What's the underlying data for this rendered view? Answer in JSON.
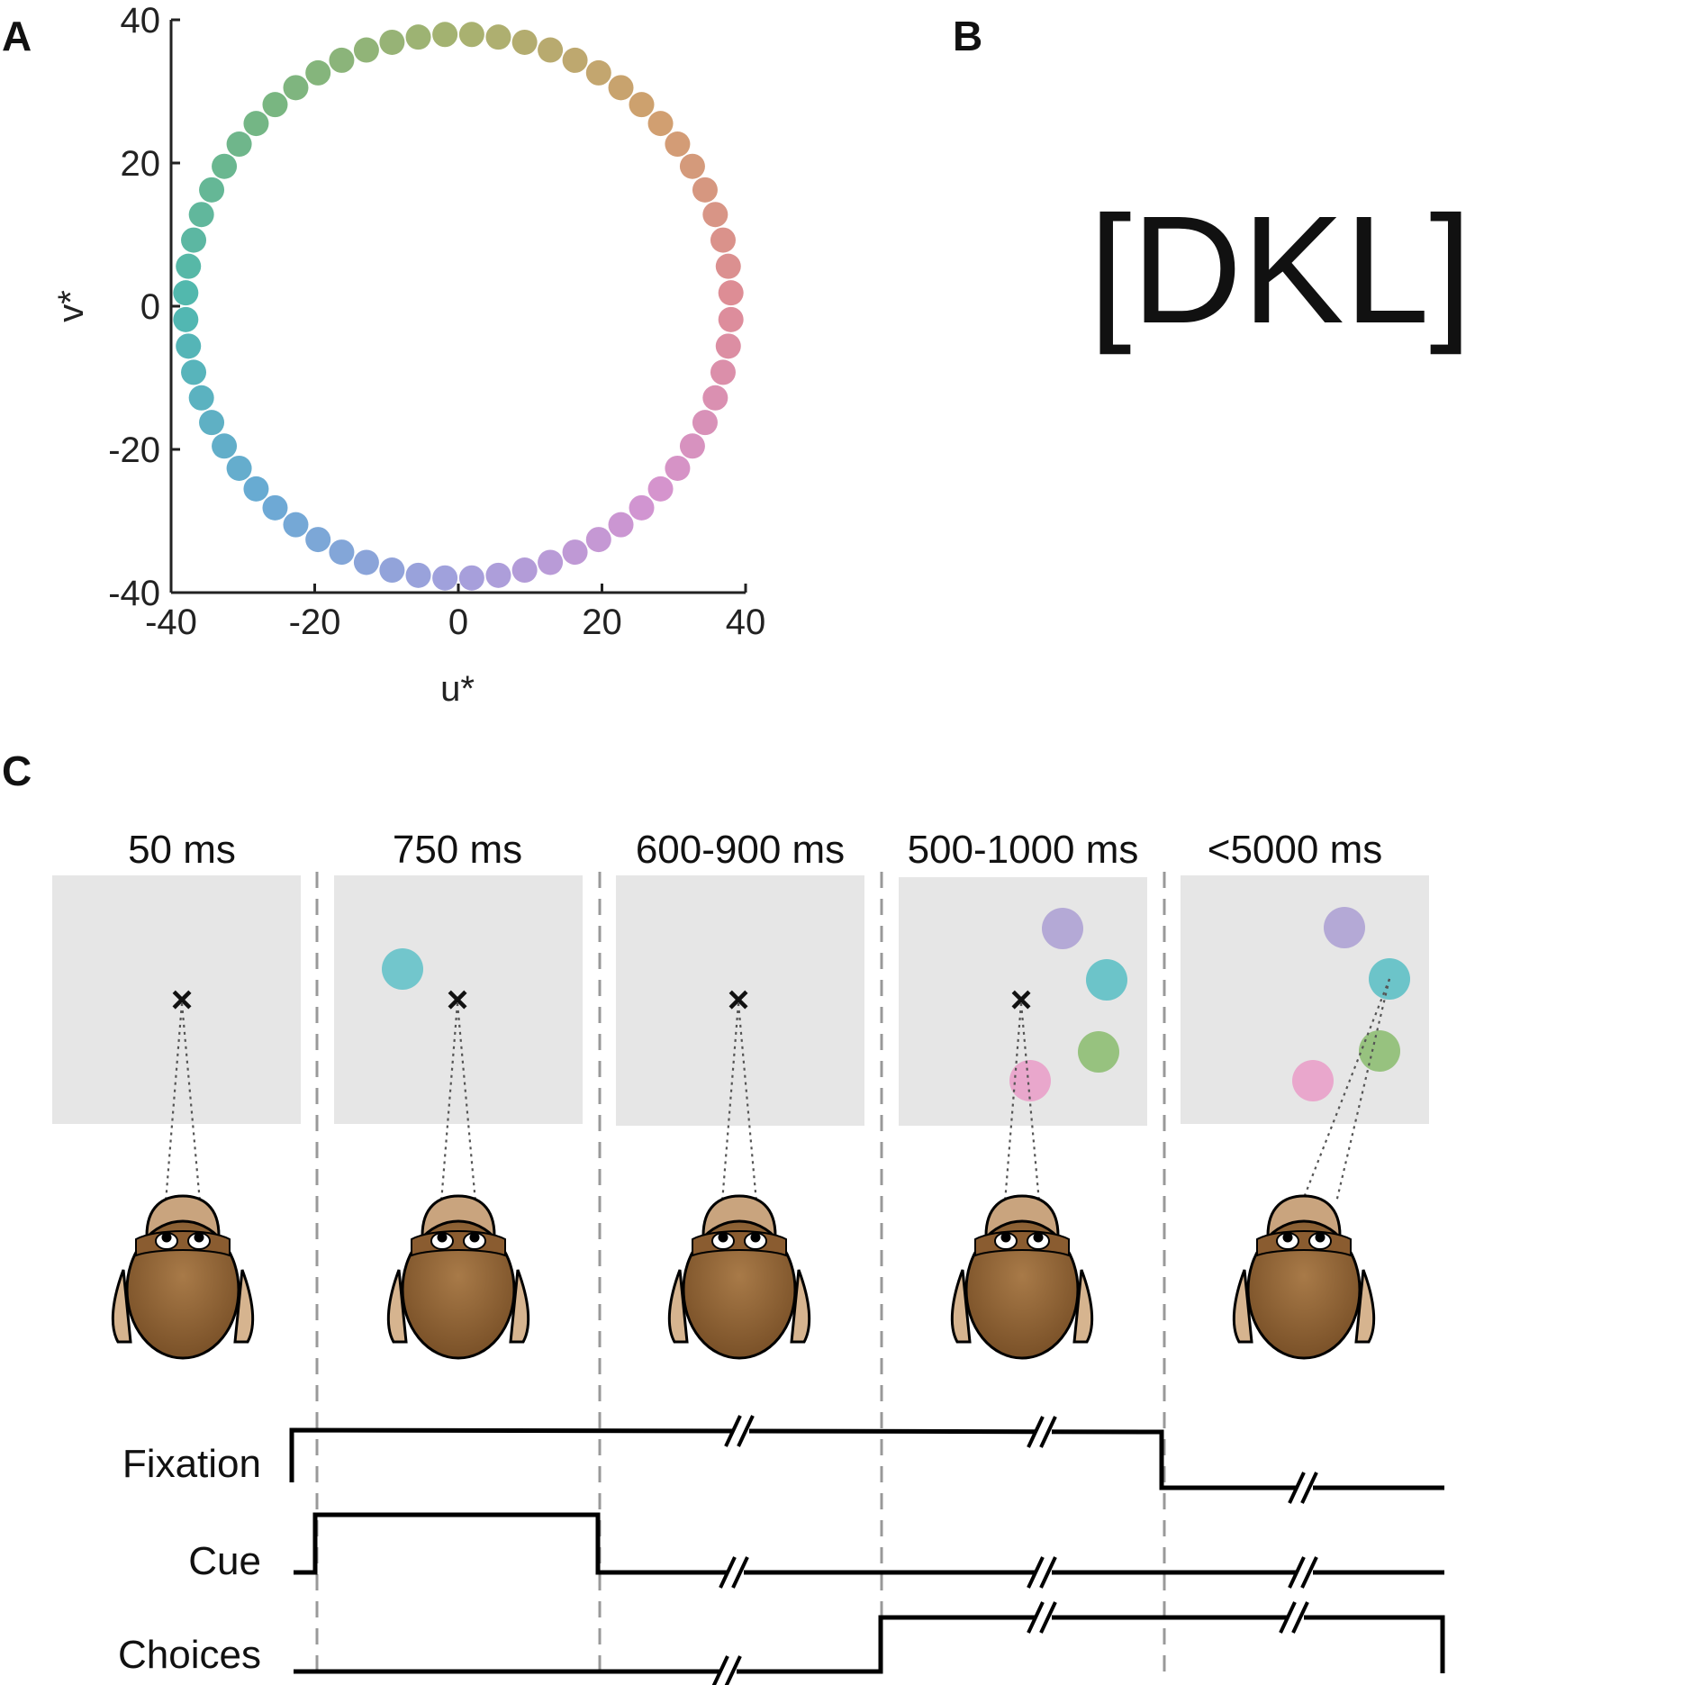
{
  "panels": {
    "a": "A",
    "b": "B",
    "c": "C"
  },
  "chart_data": {
    "type": "scatter",
    "title": "",
    "xlabel": "u*",
    "ylabel": "v*",
    "xlim": [
      -40,
      40
    ],
    "ylim": [
      -40,
      40
    ],
    "xticks": [
      "-40",
      "-20",
      "0",
      "20",
      "40"
    ],
    "yticks": [
      "40",
      "20",
      "0",
      "-20",
      "-40"
    ],
    "xtick_values": [
      -40,
      -20,
      0,
      20,
      40
    ],
    "ytick_values": [
      40,
      20,
      0,
      -20,
      -40
    ],
    "grid": false,
    "legend": "none",
    "points": {
      "count": 64,
      "radius": 38,
      "description_of_shape": "circle"
    }
  },
  "panel_b": {
    "text": "[DKL]"
  },
  "timeline": {
    "durations": [
      "50 ms",
      "750 ms",
      "600-900 ms",
      "500-1000 ms",
      "<5000 ms"
    ],
    "rows": [
      "Fixation",
      "Cue",
      "Choices"
    ],
    "fixation_mark": "×",
    "colors": {
      "screen": "#e6e6e6",
      "cue": "#72c6cc",
      "choice_purple": "#b4a9d6",
      "choice_cyan": "#6cc4c9",
      "choice_green": "#97c27f",
      "choice_pink": "#e9a7cc",
      "monkey_body": "#9a6a3c",
      "monkey_face": "#c9a47e",
      "monkey_ear": "#d6b48f"
    }
  }
}
